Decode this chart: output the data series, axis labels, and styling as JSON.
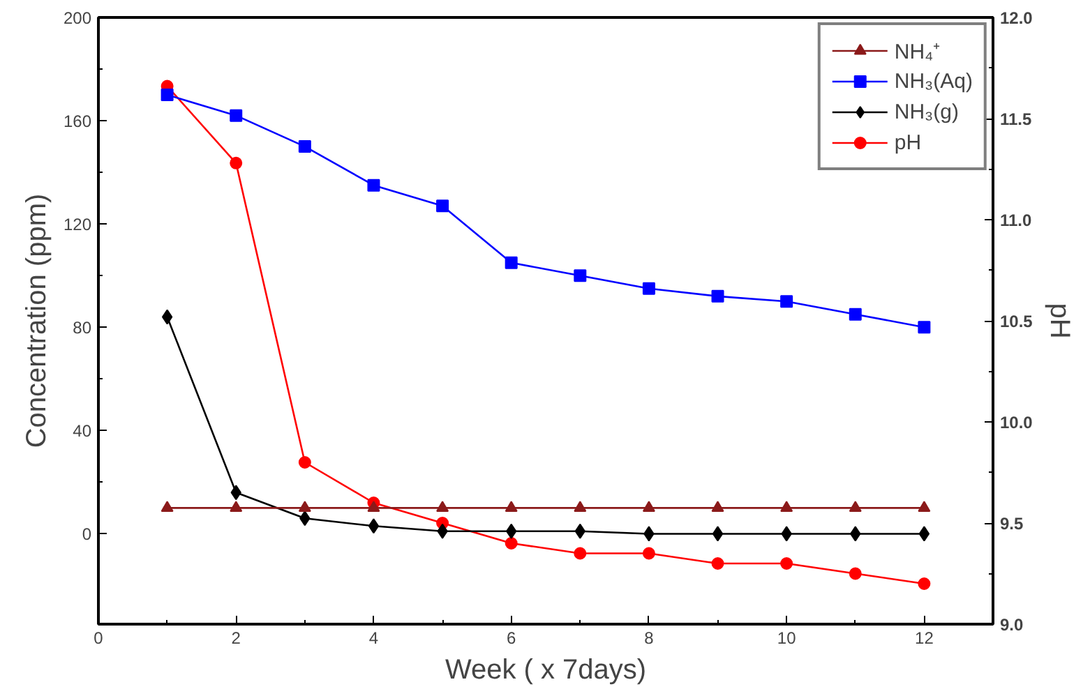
{
  "chart_data": {
    "type": "line",
    "xlabel": "Week ( x 7days)",
    "ylabel": "Concentration (ppm)",
    "y2label": "pH",
    "x": [
      1,
      2,
      3,
      4,
      5,
      6,
      7,
      8,
      9,
      10,
      11,
      12
    ],
    "xlim": [
      0,
      13
    ],
    "xticks": [
      0,
      2,
      4,
      6,
      8,
      10,
      12
    ],
    "ylim": [
      -35,
      200
    ],
    "yticks": [
      0,
      40,
      80,
      120,
      160,
      200
    ],
    "y2lim": [
      9,
      12
    ],
    "y2ticks": [
      {
        "value": 9,
        "label": "9.0"
      },
      {
        "value": 9.5,
        "label": "9.5"
      },
      {
        "value": 10,
        "label": "10.0"
      },
      {
        "value": 10.5,
        "label": "10.5"
      },
      {
        "value": 11,
        "label": "11.0"
      },
      {
        "value": 11.5,
        "label": "11.5"
      },
      {
        "value": 12,
        "label": "12.0"
      }
    ],
    "grid": false,
    "legend": "top right",
    "series": [
      {
        "name": "NH₄⁺",
        "color": "#8b1a1a",
        "marker": "triangle",
        "values": [
          10,
          10,
          10,
          10,
          10,
          10,
          10,
          10,
          10,
          10,
          10,
          10
        ]
      },
      {
        "name": "NH₃(Aq)",
        "color": "#0000ff",
        "marker": "square",
        "values": [
          170,
          162,
          150,
          135,
          127,
          105,
          100,
          95,
          92,
          90,
          85,
          80
        ]
      },
      {
        "name": "NH₃(g)",
        "color": "#000000",
        "marker": "diamond",
        "values": [
          84,
          16,
          6,
          3,
          1,
          1,
          1,
          0,
          0,
          0,
          0,
          0
        ]
      },
      {
        "name": "pH",
        "color": "#ff0000",
        "marker": "circle",
        "axis": "y2",
        "values": [
          11.66,
          11.28,
          9.8,
          9.6,
          9.5,
          9.4,
          9.35,
          9.35,
          9.3,
          9.3,
          9.25,
          9.2
        ]
      }
    ]
  }
}
